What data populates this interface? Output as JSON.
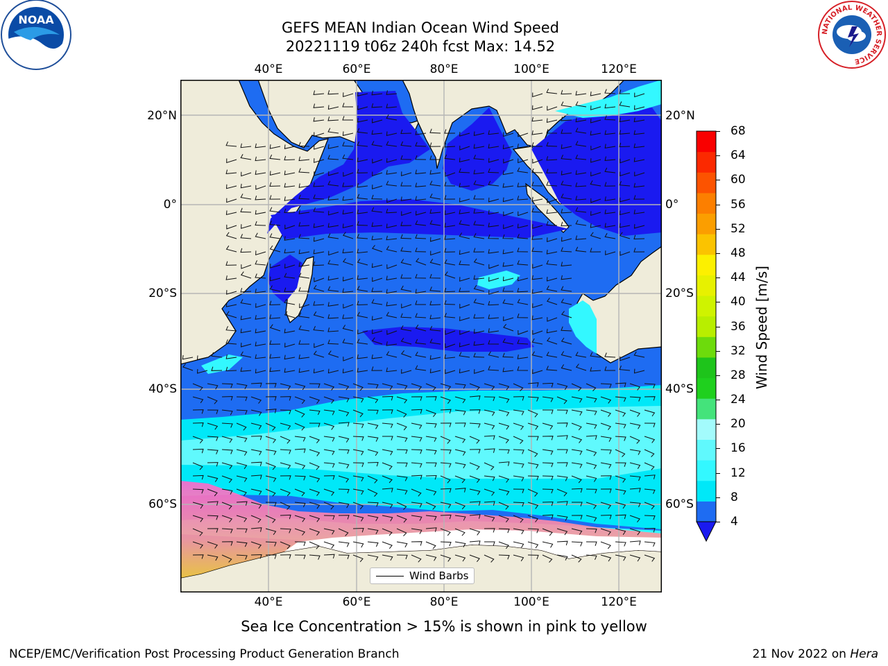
{
  "title": {
    "line1": "GEFS MEAN Indian Ocean Wind Speed",
    "line2": "20221119 t06z 240h fcst   Max: 14.52"
  },
  "axes": {
    "lon_ticks": [
      "40°E",
      "60°E",
      "80°E",
      "100°E",
      "120°E"
    ],
    "lat_ticks_left": [
      "20°N",
      "0°",
      "20°S",
      "40°S",
      "60°S"
    ],
    "lat_ticks_right": [
      "20°N",
      "0°",
      "20°S",
      "40°S",
      "60°S"
    ]
  },
  "colorbar": {
    "label": "Wind Speed [m/s]",
    "ticks": [
      "68",
      "64",
      "60",
      "56",
      "52",
      "48",
      "44",
      "40",
      "36",
      "32",
      "28",
      "24",
      "20",
      "16",
      "12",
      "8",
      "4"
    ],
    "colors_low_to_high": [
      "#1e6cf2",
      "#00e8f8",
      "#33f8ff",
      "#60f9fd",
      "#a3fbfc",
      "#44e37b",
      "#1fd01e",
      "#1ec41b",
      "#6ddb0c",
      "#b8ee00",
      "#cff300",
      "#e7f100",
      "#fcf000",
      "#fbc300",
      "#fb9e00",
      "#fc7f00",
      "#fc5300",
      "#fb2900",
      "#f90000"
    ],
    "under_color": "#1a1af0"
  },
  "legend": {
    "label": "Wind Barbs"
  },
  "caption": "Sea Ice Concentration > 15% is shown in pink to yellow",
  "footer": {
    "left": "NCEP/EMC/Verification Post Processing Product Generation Branch",
    "right_date": "21 Nov 2022 on ",
    "right_host": "Hera"
  },
  "logos": {
    "noaa": "NOAA",
    "nws_ring": "NATIONAL WEATHER SERVICE"
  },
  "colors": {
    "land": "#efecda",
    "ocean_low": "#1e6cf2",
    "ocean_very_low": "#1a1af0",
    "ocean_mid": "#2af5ff",
    "ice_pink": "#ff66cc",
    "ice_yellow": "#ffcc33"
  }
}
